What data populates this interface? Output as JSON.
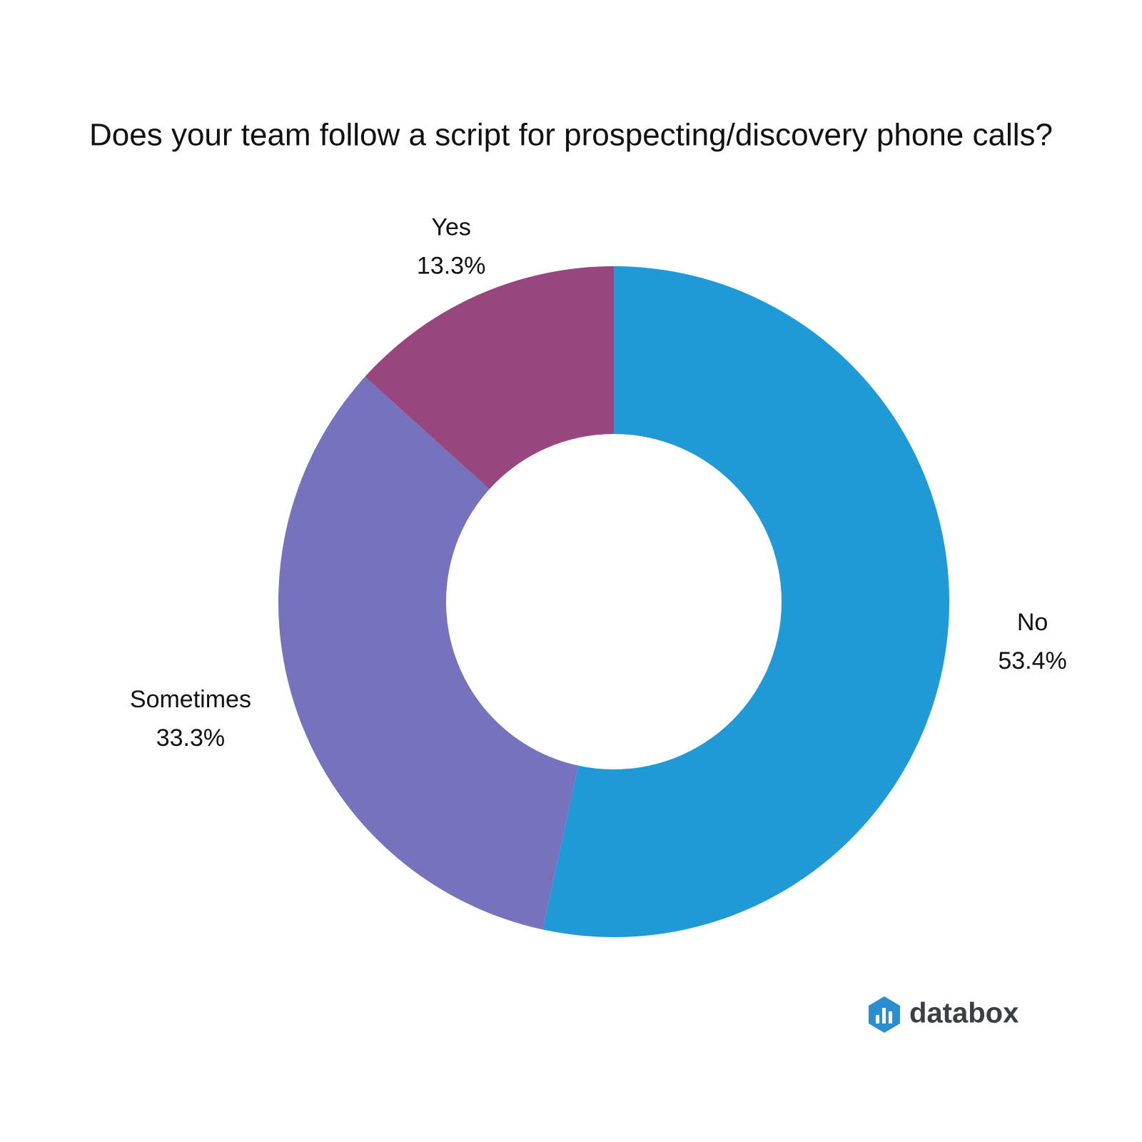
{
  "chart_data": {
    "type": "donut",
    "title": "Does your team follow a script for prospecting/discovery phone calls?",
    "categories": [
      "No",
      "Sometimes",
      "Yes"
    ],
    "values": [
      53.4,
      33.3,
      13.3
    ],
    "value_labels": [
      "53.4%",
      "33.3%",
      "13.3%"
    ],
    "colors": [
      "#1f9ad6",
      "#7672bd",
      "#98477e"
    ]
  },
  "brand": "databox"
}
